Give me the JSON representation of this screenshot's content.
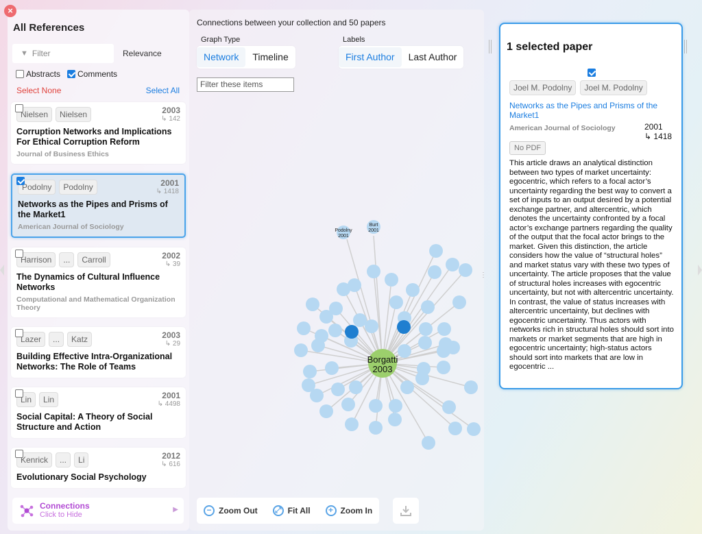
{
  "left": {
    "title": "All References",
    "filter_placeholder": "Filter",
    "sort": "Relevance",
    "abstracts_label": "Abstracts",
    "comments_label": "Comments",
    "select_none": "Select None",
    "select_all": "Select All",
    "papers": [
      {
        "authors": [
          "Nielsen",
          "Nielsen"
        ],
        "year": "2003",
        "cites": "↳ 142",
        "title": "Corruption Networks and Implications For Ethical Corruption Reform",
        "journal": "Journal of Business Ethics",
        "checked": false,
        "selected": false
      },
      {
        "authors": [
          "Podolny",
          "Podolny"
        ],
        "year": "2001",
        "cites": "↳ 1418",
        "title": "Networks as the Pipes and Prisms of the Market1",
        "journal": "American Journal of Sociology",
        "checked": true,
        "selected": true
      },
      {
        "authors": [
          "Harrison",
          "...",
          "Carroll"
        ],
        "year": "2002",
        "cites": "↳ 39",
        "title": "The Dynamics of Cultural Influence Networks",
        "journal": "Computational and Mathematical Organization Theory",
        "checked": false,
        "selected": false
      },
      {
        "authors": [
          "Lazer",
          "...",
          "Katz"
        ],
        "year": "2003",
        "cites": "↳ 29",
        "title": "Building Effective Intra-Organizational Networks: The Role of Teams",
        "journal": "",
        "checked": false,
        "selected": false
      },
      {
        "authors": [
          "Lin",
          "Lin"
        ],
        "year": "2001",
        "cites": "↳ 4498",
        "title": "Social Capital: A Theory of Social Structure and Action",
        "journal": "",
        "checked": false,
        "selected": false
      },
      {
        "authors": [
          "Kenrick",
          "...",
          "Li"
        ],
        "year": "2012",
        "cites": "↳ 616",
        "title": "Evolutionary Social Psychology",
        "journal": "",
        "checked": false,
        "selected": false
      }
    ],
    "connections_title": "Connections",
    "connections_sub": "Click to Hide"
  },
  "graph": {
    "heading": "Connections between your collection and 50 papers",
    "graph_type_label": "Graph Type",
    "graph_type_options": [
      "Network",
      "Timeline"
    ],
    "graph_type_active": "Network",
    "labels_label": "Labels",
    "labels_options": [
      "First Author",
      "Last Author"
    ],
    "labels_active": "First Author",
    "filter_placeholder": "Filter these items",
    "center_node": {
      "name": "Borgatti",
      "year": "2003"
    },
    "labeled_nodes": [
      {
        "name": "Podolny",
        "year": "2001"
      },
      {
        "name": "Burt",
        "year": "2001"
      }
    ],
    "zoom_out": "Zoom Out",
    "fit_all": "Fit All",
    "zoom_in": "Zoom In"
  },
  "detail": {
    "title": "1 selected paper",
    "authors": [
      "Joel M. Podolny",
      "Joel M. Podolny"
    ],
    "paper_title": "Networks as the Pipes and Prisms of the Market1",
    "journal": "American Journal of Sociology",
    "year": "2001",
    "cites": "↳ 1418",
    "pdf": "No PDF",
    "abstract": "This article draws an analytical distinction between two types of market uncertainty: egocentric, which refers to a focal actor’s uncertainty regarding the best way to convert a set of inputs to an output desired by a potential exchange partner, and altercentric, which denotes the uncertainty confronted by a focal actor’s exchange partners regarding the quality of the output that the focal actor brings to the market. Given this distinction, the article considers how the value of “structural holes” and market status vary with these two types of uncertainty. The article proposes that the value of structural holes increases with egocentric uncertainty, but not with altercentric uncertainty. In contrast, the value of status increases with altercentric uncertainty, but declines with egocentric uncertainty. Thus actors with networks rich in structural holes should sort into markets or market segments that are high in egocentric uncertainty; high-status actors should sort into markets that are low in egocentric ..."
  },
  "colors": {
    "accent": "#1a7de0",
    "node": "#b6d8f2",
    "node_dark": "#1f7fd0",
    "center_node": "#9ccf6c",
    "danger": "#e0443e",
    "connections": "#b24bd4"
  }
}
